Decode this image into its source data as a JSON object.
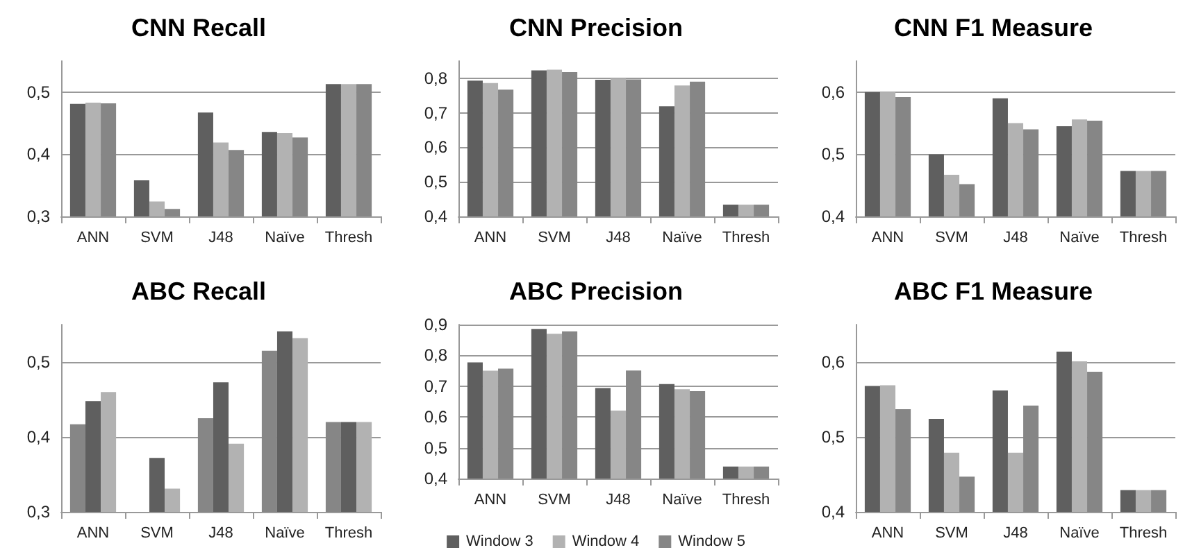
{
  "chart_data": [
    {
      "type": "bar",
      "title": "CNN Recall",
      "categories": [
        "ANN",
        "SVM",
        "J48",
        "Naïve",
        "Thresh"
      ],
      "ylim": [
        0.3,
        0.55
      ],
      "yticks": [
        {
          "value": 0.3,
          "label": "0,3"
        },
        {
          "value": 0.4,
          "label": "0,4"
        },
        {
          "value": 0.5,
          "label": "0,5"
        }
      ],
      "grid": "y",
      "series": [
        {
          "color": "#5f5f5f",
          "values": [
            0.481,
            0.358,
            0.467,
            0.436,
            0.513
          ]
        },
        {
          "color": "#b2b2b2",
          "values": [
            0.483,
            0.324,
            0.419,
            0.434,
            0.513
          ]
        },
        {
          "color": "#868686",
          "values": [
            0.482,
            0.312,
            0.407,
            0.427,
            0.513
          ]
        }
      ]
    },
    {
      "type": "bar",
      "title": "CNN Precision",
      "categories": [
        "ANN",
        "SVM",
        "J48",
        "Naïve",
        "Thresh"
      ],
      "ylim": [
        0.4,
        0.85
      ],
      "yticks": [
        {
          "value": 0.4,
          "label": "0,4"
        },
        {
          "value": 0.5,
          "label": "0,5"
        },
        {
          "value": 0.6,
          "label": "0,6"
        },
        {
          "value": 0.7,
          "label": "0,7"
        },
        {
          "value": 0.8,
          "label": "0,8"
        }
      ],
      "grid": "y",
      "series": [
        {
          "color": "#5f5f5f",
          "values": [
            0.793,
            0.823,
            0.796,
            0.719,
            0.434
          ]
        },
        {
          "color": "#b2b2b2",
          "values": [
            0.786,
            0.825,
            0.8,
            0.779,
            0.434
          ]
        },
        {
          "color": "#868686",
          "values": [
            0.767,
            0.818,
            0.797,
            0.79,
            0.434
          ]
        }
      ]
    },
    {
      "type": "bar",
      "title": "CNN F1 Measure",
      "categories": [
        "ANN",
        "SVM",
        "J48",
        "Naïve",
        "Thresh"
      ],
      "ylim": [
        0.4,
        0.65
      ],
      "yticks": [
        {
          "value": 0.4,
          "label": "0,4"
        },
        {
          "value": 0.5,
          "label": "0,5"
        },
        {
          "value": 0.6,
          "label": "0,6"
        }
      ],
      "grid": "y",
      "series": [
        {
          "color": "#5f5f5f",
          "values": [
            0.6,
            0.5,
            0.59,
            0.545,
            0.473
          ]
        },
        {
          "color": "#b2b2b2",
          "values": [
            0.6,
            0.467,
            0.55,
            0.556,
            0.473
          ]
        },
        {
          "color": "#868686",
          "values": [
            0.592,
            0.452,
            0.54,
            0.554,
            0.473
          ]
        }
      ]
    },
    {
      "type": "bar",
      "title": "ABC Recall",
      "categories": [
        "ANN",
        "SVM",
        "J48",
        "Naïve",
        "Thresh"
      ],
      "ylim": [
        0.3,
        0.55
      ],
      "yticks": [
        {
          "value": 0.3,
          "label": "0,3"
        },
        {
          "value": 0.4,
          "label": "0,4"
        },
        {
          "value": 0.5,
          "label": "0,5"
        }
      ],
      "grid": "y",
      "series": [
        {
          "color": "#868686",
          "values": [
            0.417,
            null,
            0.425,
            0.515,
            0.42
          ]
        },
        {
          "color": "#5f5f5f",
          "values": [
            0.448,
            0.372,
            0.473,
            0.541,
            0.42
          ]
        },
        {
          "color": "#b2b2b2",
          "values": [
            0.46,
            0.331,
            0.391,
            0.532,
            0.42
          ]
        }
      ]
    },
    {
      "type": "bar",
      "title": "ABC Precision",
      "categories": [
        "ANN",
        "SVM",
        "J48",
        "Naïve",
        "Thresh"
      ],
      "ylim": [
        0.4,
        0.9
      ],
      "yticks": [
        {
          "value": 0.4,
          "label": "0,4"
        },
        {
          "value": 0.5,
          "label": "0,5"
        },
        {
          "value": 0.6,
          "label": "0,6"
        },
        {
          "value": 0.7,
          "label": "0,7"
        },
        {
          "value": 0.8,
          "label": "0,8"
        },
        {
          "value": 0.9,
          "label": "0,9"
        }
      ],
      "grid": "y",
      "legend": "bottom",
      "series": [
        {
          "name": "Window 3",
          "color": "#5f5f5f",
          "values": [
            0.777,
            0.886,
            0.694,
            0.707,
            0.439
          ]
        },
        {
          "name": "Window 4",
          "color": "#b2b2b2",
          "values": [
            0.75,
            0.87,
            0.621,
            0.69,
            0.439
          ]
        },
        {
          "name": "Window 5",
          "color": "#868686",
          "values": [
            0.757,
            0.878,
            0.751,
            0.684,
            0.439
          ]
        }
      ]
    },
    {
      "type": "bar",
      "title": "ABC F1 Measure",
      "categories": [
        "ANN",
        "SVM",
        "J48",
        "Naïve",
        "Thresh"
      ],
      "ylim": [
        0.4,
        0.65
      ],
      "yticks": [
        {
          "value": 0.4,
          "label": "0,4"
        },
        {
          "value": 0.5,
          "label": "0,5"
        },
        {
          "value": 0.6,
          "label": "0,6"
        }
      ],
      "grid": "y",
      "series": [
        {
          "color": "#5f5f5f",
          "values": [
            0.568,
            0.524,
            0.562,
            0.614,
            0.429
          ]
        },
        {
          "color": "#b2b2b2",
          "values": [
            0.569,
            0.479,
            0.479,
            0.601,
            0.429
          ]
        },
        {
          "color": "#868686",
          "values": [
            0.537,
            0.447,
            0.542,
            0.587,
            0.429
          ]
        }
      ]
    }
  ]
}
